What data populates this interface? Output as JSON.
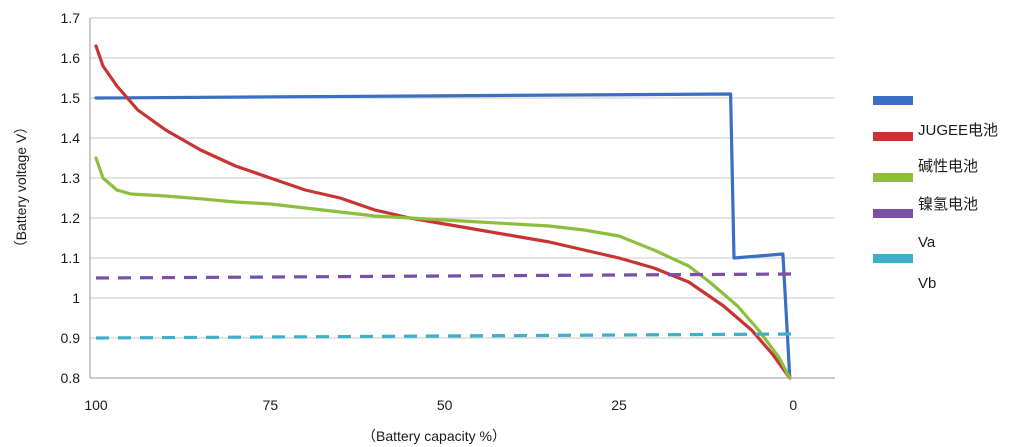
{
  "chart_data": {
    "type": "line",
    "xlabel": "（Battery capacity %）",
    "ylabel": "（Battery voltage  V）",
    "xlim": [
      100,
      0
    ],
    "ylim": [
      0.8,
      1.7
    ],
    "x_reversed": true,
    "grid": "horizontal",
    "legend_position": "right",
    "x_ticks": [
      "100",
      "75",
      "50",
      "25",
      "0"
    ],
    "x_tick_values": [
      100,
      75,
      50,
      25,
      0
    ],
    "y_ticks": [
      "0.8",
      "0.9",
      "1",
      "1.1",
      "1.2",
      "1.3",
      "1.4",
      "1.5",
      "1.6",
      "1.7"
    ],
    "y_tick_values": [
      0.8,
      0.9,
      1.0,
      1.1,
      1.2,
      1.3,
      1.4,
      1.5,
      1.6,
      1.7
    ],
    "legend": [
      "",
      "JUGEE电池",
      "碱性电池",
      "镍氢电池",
      "Va",
      "Vb"
    ],
    "series": [
      {
        "color": "#3a6fc4",
        "style": "solid",
        "points": [
          [
            100,
            1.5
          ],
          [
            9,
            1.51
          ],
          [
            8.5,
            1.1
          ],
          [
            1.5,
            1.11
          ],
          [
            0.5,
            0.8
          ]
        ]
      },
      {
        "color": "#c83434",
        "style": "solid",
        "points": [
          [
            100,
            1.63
          ],
          [
            99,
            1.58
          ],
          [
            97,
            1.53
          ],
          [
            94,
            1.47
          ],
          [
            90,
            1.42
          ],
          [
            85,
            1.37
          ],
          [
            80,
            1.33
          ],
          [
            75,
            1.3
          ],
          [
            70,
            1.27
          ],
          [
            65,
            1.25
          ],
          [
            60,
            1.22
          ],
          [
            55,
            1.2
          ],
          [
            50,
            1.185
          ],
          [
            45,
            1.17
          ],
          [
            40,
            1.155
          ],
          [
            35,
            1.14
          ],
          [
            30,
            1.12
          ],
          [
            25,
            1.1
          ],
          [
            20,
            1.075
          ],
          [
            15,
            1.04
          ],
          [
            10,
            0.98
          ],
          [
            6,
            0.92
          ],
          [
            3,
            0.86
          ],
          [
            0.5,
            0.8
          ]
        ]
      },
      {
        "color": "#8dbf3f",
        "style": "solid",
        "points": [
          [
            100,
            1.35
          ],
          [
            99,
            1.3
          ],
          [
            97,
            1.27
          ],
          [
            95,
            1.26
          ],
          [
            90,
            1.255
          ],
          [
            85,
            1.248
          ],
          [
            80,
            1.24
          ],
          [
            75,
            1.235
          ],
          [
            70,
            1.225
          ],
          [
            65,
            1.215
          ],
          [
            60,
            1.205
          ],
          [
            55,
            1.2
          ],
          [
            50,
            1.195
          ],
          [
            45,
            1.19
          ],
          [
            40,
            1.185
          ],
          [
            35,
            1.18
          ],
          [
            30,
            1.17
          ],
          [
            25,
            1.155
          ],
          [
            20,
            1.12
          ],
          [
            15,
            1.08
          ],
          [
            12,
            1.04
          ],
          [
            8,
            0.98
          ],
          [
            5,
            0.92
          ],
          [
            2,
            0.85
          ],
          [
            0.5,
            0.8
          ]
        ]
      },
      {
        "color": "#7a4fa8",
        "style": "dashed",
        "points": [
          [
            100,
            1.05
          ],
          [
            0,
            1.06
          ]
        ]
      },
      {
        "color": "#3fb0c8",
        "style": "dashed",
        "points": [
          [
            100,
            0.9
          ],
          [
            0,
            0.91
          ]
        ]
      }
    ],
    "legend_colors": [
      "#3a6fc4",
      "#c83434",
      "#8dbf3f",
      "#7a4fa8",
      "#3fb0c8"
    ]
  }
}
